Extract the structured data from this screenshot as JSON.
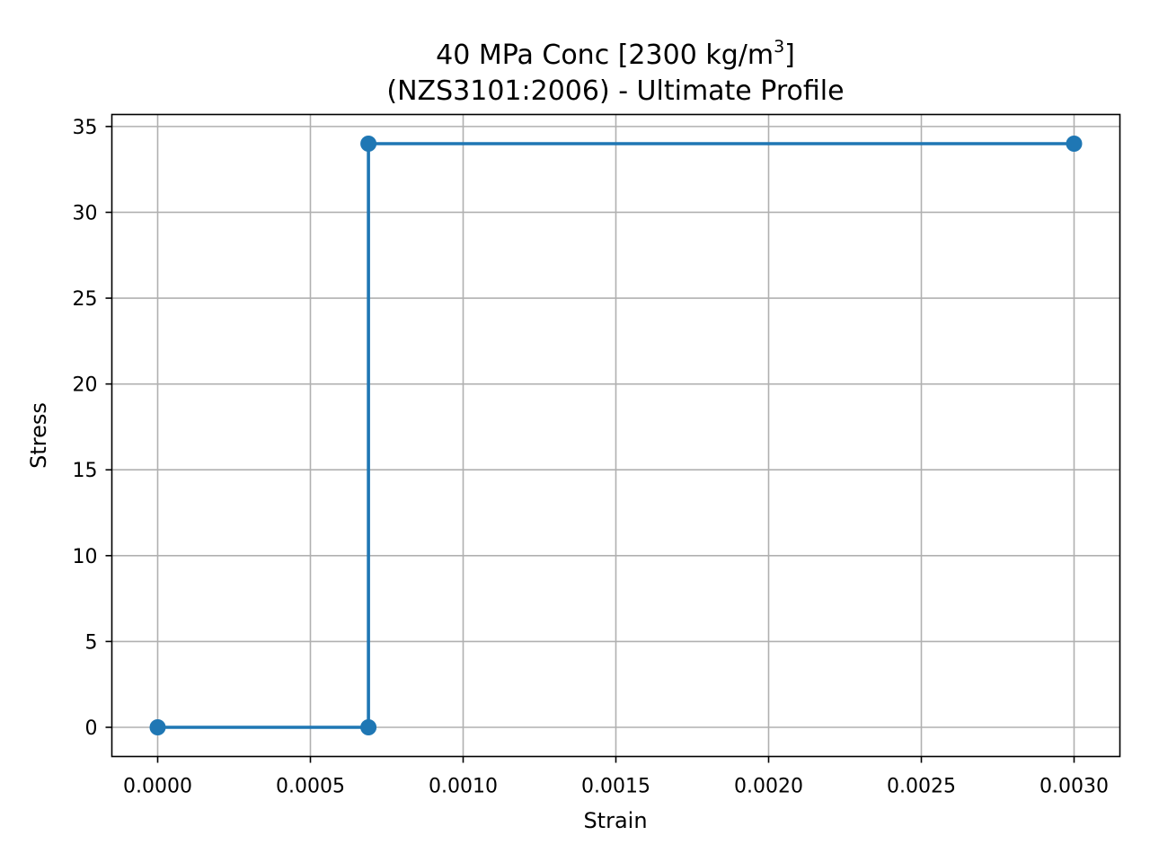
{
  "chart_data": {
    "type": "line",
    "title": {
      "line1_main": "40 MPa Conc [2300 kg/m",
      "line1_sup": "3",
      "line1_end": "]",
      "line2": "(NZS3101:2006) - Ultimate Profile"
    },
    "xlabel": "Strain",
    "ylabel": "Stress",
    "xlim": [
      -0.00015,
      0.00315
    ],
    "ylim": [
      -1.7,
      35.7
    ],
    "grid": true,
    "xticks": [
      0.0,
      0.0005,
      0.001,
      0.0015,
      0.002,
      0.0025,
      0.003
    ],
    "xtick_labels": [
      "0.0000",
      "0.0005",
      "0.0010",
      "0.0015",
      "0.0020",
      "0.0025",
      "0.0030"
    ],
    "yticks": [
      0,
      5,
      10,
      15,
      20,
      25,
      30,
      35
    ],
    "ytick_labels": [
      "0",
      "5",
      "10",
      "15",
      "20",
      "25",
      "30",
      "35"
    ],
    "series": [
      {
        "color": "#1f77b4",
        "marker": "circle",
        "x": [
          0.0,
          0.00069,
          0.00069,
          0.003
        ],
        "y": [
          0,
          0,
          34,
          34
        ]
      }
    ]
  }
}
